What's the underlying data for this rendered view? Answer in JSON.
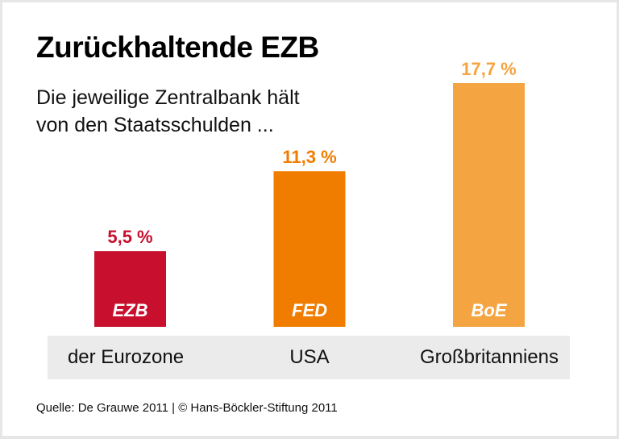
{
  "title": "Zurückhaltende EZB",
  "subtitle_lines": [
    "Die jeweilige Zentralbank hält",
    "von den Staatsschulden ..."
  ],
  "source": "Quelle: De Grauwe 2011 | © Hans-Böckler-Stiftung 2011",
  "chart_data": {
    "type": "bar",
    "title": "Zurückhaltende EZB",
    "subtitle": "Die jeweilige Zentralbank hält von den Staatsschulden ...",
    "categories": [
      "der Eurozone",
      "USA",
      "Großbritanniens"
    ],
    "bar_labels": [
      "EZB",
      "FED",
      "BoE"
    ],
    "values": [
      5.5,
      11.3,
      17.7
    ],
    "value_labels": [
      "5,5 %",
      "11,3 %",
      "17,7 %"
    ],
    "unit": "%",
    "colors": [
      "#c8102e",
      "#f07d00",
      "#f5a442"
    ],
    "xlabel": "",
    "ylabel": "",
    "ylim": [
      0,
      17.7
    ],
    "grid": false,
    "legend": "none"
  }
}
